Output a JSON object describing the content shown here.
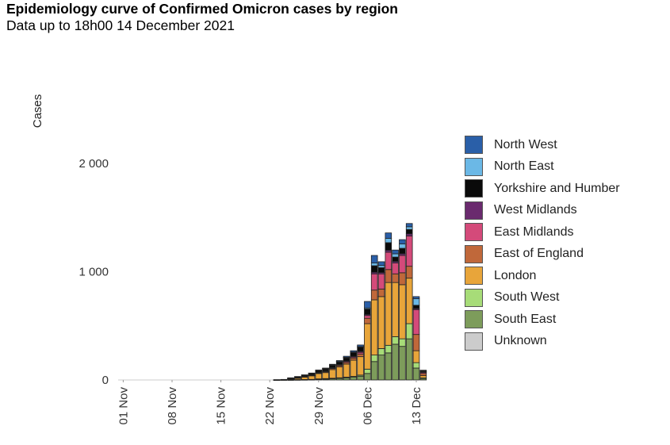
{
  "title": "Epidemiology curve of Confirmed Omicron cases by region",
  "subtitle": "Data up to 18h00 14 December 2021",
  "chart_data": {
    "type": "bar",
    "stacked": true,
    "title": "Epidemiology curve of Confirmed Omicron cases by region",
    "subtitle": "Data up to 18h00 14 December 2021",
    "ylabel": "Cases",
    "xlabel": "",
    "ylim": [
      0,
      2500
    ],
    "yticks": [
      0,
      1000,
      2000
    ],
    "ytick_labels": [
      "0",
      "1 000",
      "2 000"
    ],
    "xticks": [
      "01 Nov",
      "08 Nov",
      "15 Nov",
      "22 Nov",
      "29 Nov",
      "06 Dec",
      "13 Dec"
    ],
    "categories": [
      "01 Nov",
      "02 Nov",
      "03 Nov",
      "04 Nov",
      "05 Nov",
      "06 Nov",
      "07 Nov",
      "08 Nov",
      "09 Nov",
      "10 Nov",
      "11 Nov",
      "12 Nov",
      "13 Nov",
      "14 Nov",
      "15 Nov",
      "16 Nov",
      "17 Nov",
      "18 Nov",
      "19 Nov",
      "20 Nov",
      "21 Nov",
      "22 Nov",
      "23 Nov",
      "24 Nov",
      "25 Nov",
      "26 Nov",
      "27 Nov",
      "28 Nov",
      "29 Nov",
      "30 Nov",
      "01 Dec",
      "02 Dec",
      "03 Dec",
      "04 Dec",
      "05 Dec",
      "06 Dec",
      "07 Dec",
      "08 Dec",
      "09 Dec",
      "10 Dec",
      "11 Dec",
      "12 Dec",
      "13 Dec",
      "14 Dec"
    ],
    "series": [
      {
        "name": "South East",
        "color": "#7d9c5b",
        "values": [
          0,
          0,
          0,
          0,
          0,
          0,
          0,
          0,
          0,
          0,
          0,
          0,
          0,
          0,
          0,
          0,
          0,
          0,
          0,
          0,
          0,
          0,
          0,
          0,
          2,
          3,
          4,
          5,
          8,
          10,
          12,
          15,
          20,
          25,
          35,
          60,
          170,
          230,
          250,
          330,
          310,
          380,
          110,
          10
        ]
      },
      {
        "name": "South West",
        "color": "#a7dc78",
        "values": [
          0,
          0,
          0,
          0,
          0,
          0,
          0,
          0,
          0,
          0,
          0,
          0,
          0,
          0,
          0,
          0,
          0,
          0,
          0,
          0,
          0,
          0,
          0,
          0,
          0,
          0,
          0,
          0,
          2,
          3,
          4,
          5,
          6,
          8,
          10,
          40,
          60,
          60,
          70,
          70,
          70,
          140,
          50,
          10
        ]
      },
      {
        "name": "London",
        "color": "#e8a53a",
        "values": [
          0,
          0,
          0,
          0,
          0,
          0,
          0,
          0,
          0,
          0,
          0,
          0,
          0,
          0,
          0,
          0,
          0,
          0,
          0,
          0,
          0,
          0,
          1,
          2,
          10,
          15,
          25,
          35,
          50,
          55,
          80,
          100,
          120,
          150,
          170,
          420,
          510,
          480,
          580,
          500,
          500,
          420,
          110,
          20
        ]
      },
      {
        "name": "East of England",
        "color": "#c0683a",
        "values": [
          0,
          0,
          0,
          0,
          0,
          0,
          0,
          0,
          0,
          0,
          0,
          0,
          0,
          0,
          0,
          0,
          0,
          0,
          0,
          0,
          0,
          0,
          0,
          0,
          1,
          2,
          3,
          3,
          5,
          8,
          10,
          12,
          15,
          20,
          25,
          50,
          90,
          70,
          120,
          80,
          110,
          110,
          150,
          20
        ]
      },
      {
        "name": "East Midlands",
        "color": "#d44a7a",
        "values": [
          0,
          0,
          0,
          0,
          0,
          0,
          0,
          0,
          0,
          0,
          0,
          0,
          0,
          0,
          0,
          0,
          0,
          0,
          0,
          0,
          0,
          0,
          0,
          0,
          0,
          1,
          1,
          2,
          3,
          5,
          6,
          8,
          10,
          10,
          15,
          25,
          150,
          140,
          160,
          100,
          160,
          280,
          230,
          10
        ]
      },
      {
        "name": "West Midlands",
        "color": "#6a2a6e",
        "values": [
          0,
          0,
          0,
          0,
          0,
          0,
          0,
          0,
          0,
          0,
          0,
          0,
          0,
          0,
          0,
          0,
          0,
          0,
          0,
          0,
          0,
          0,
          0,
          0,
          1,
          1,
          1,
          2,
          2,
          3,
          3,
          4,
          5,
          6,
          8,
          10,
          15,
          12,
          18,
          15,
          16,
          20,
          10,
          5
        ]
      },
      {
        "name": "Yorkshire and Humber",
        "color": "#0a0a0a",
        "values": [
          0,
          0,
          0,
          0,
          0,
          0,
          0,
          0,
          0,
          0,
          0,
          0,
          0,
          0,
          0,
          0,
          0,
          0,
          0,
          0,
          0,
          0,
          2,
          3,
          6,
          10,
          12,
          15,
          18,
          20,
          22,
          25,
          30,
          35,
          40,
          50,
          60,
          45,
          70,
          40,
          50,
          40,
          30,
          5
        ]
      },
      {
        "name": "North East",
        "color": "#6bb8e6",
        "values": [
          0,
          0,
          0,
          0,
          0,
          0,
          0,
          0,
          0,
          0,
          0,
          0,
          0,
          0,
          0,
          0,
          0,
          0,
          0,
          0,
          0,
          0,
          0,
          0,
          0,
          0,
          0,
          0,
          1,
          1,
          2,
          2,
          3,
          4,
          5,
          10,
          25,
          20,
          40,
          30,
          40,
          25,
          60,
          5
        ]
      },
      {
        "name": "North West",
        "color": "#2a5fa8",
        "values": [
          0,
          0,
          0,
          0,
          0,
          0,
          0,
          0,
          0,
          0,
          0,
          0,
          0,
          0,
          0,
          0,
          0,
          0,
          0,
          0,
          0,
          0,
          0,
          0,
          0,
          0,
          1,
          2,
          3,
          5,
          6,
          8,
          10,
          12,
          15,
          60,
          70,
          35,
          50,
          35,
          40,
          30,
          20,
          5
        ]
      },
      {
        "name": "Unknown",
        "color": "#cccccc",
        "values": [
          0,
          0,
          0,
          0,
          0,
          0,
          0,
          0,
          0,
          0,
          0,
          0,
          0,
          0,
          0,
          0,
          0,
          0,
          0,
          0,
          0,
          0,
          0,
          0,
          0,
          0,
          0,
          0,
          0,
          0,
          0,
          0,
          0,
          0,
          0,
          0,
          0,
          0,
          0,
          0,
          0,
          0,
          0,
          0
        ]
      }
    ],
    "legend": [
      {
        "name": "North West",
        "color": "#2a5fa8"
      },
      {
        "name": "North East",
        "color": "#6bb8e6"
      },
      {
        "name": "Yorkshire and Humber",
        "color": "#0a0a0a"
      },
      {
        "name": "West Midlands",
        "color": "#6a2a6e"
      },
      {
        "name": "East Midlands",
        "color": "#d44a7a"
      },
      {
        "name": "East of England",
        "color": "#c0683a"
      },
      {
        "name": "London",
        "color": "#e8a53a"
      },
      {
        "name": "South West",
        "color": "#a7dc78"
      },
      {
        "name": "South East",
        "color": "#7d9c5b"
      },
      {
        "name": "Unknown",
        "color": "#cccccc"
      }
    ],
    "legend_position": "right",
    "grid": false
  }
}
